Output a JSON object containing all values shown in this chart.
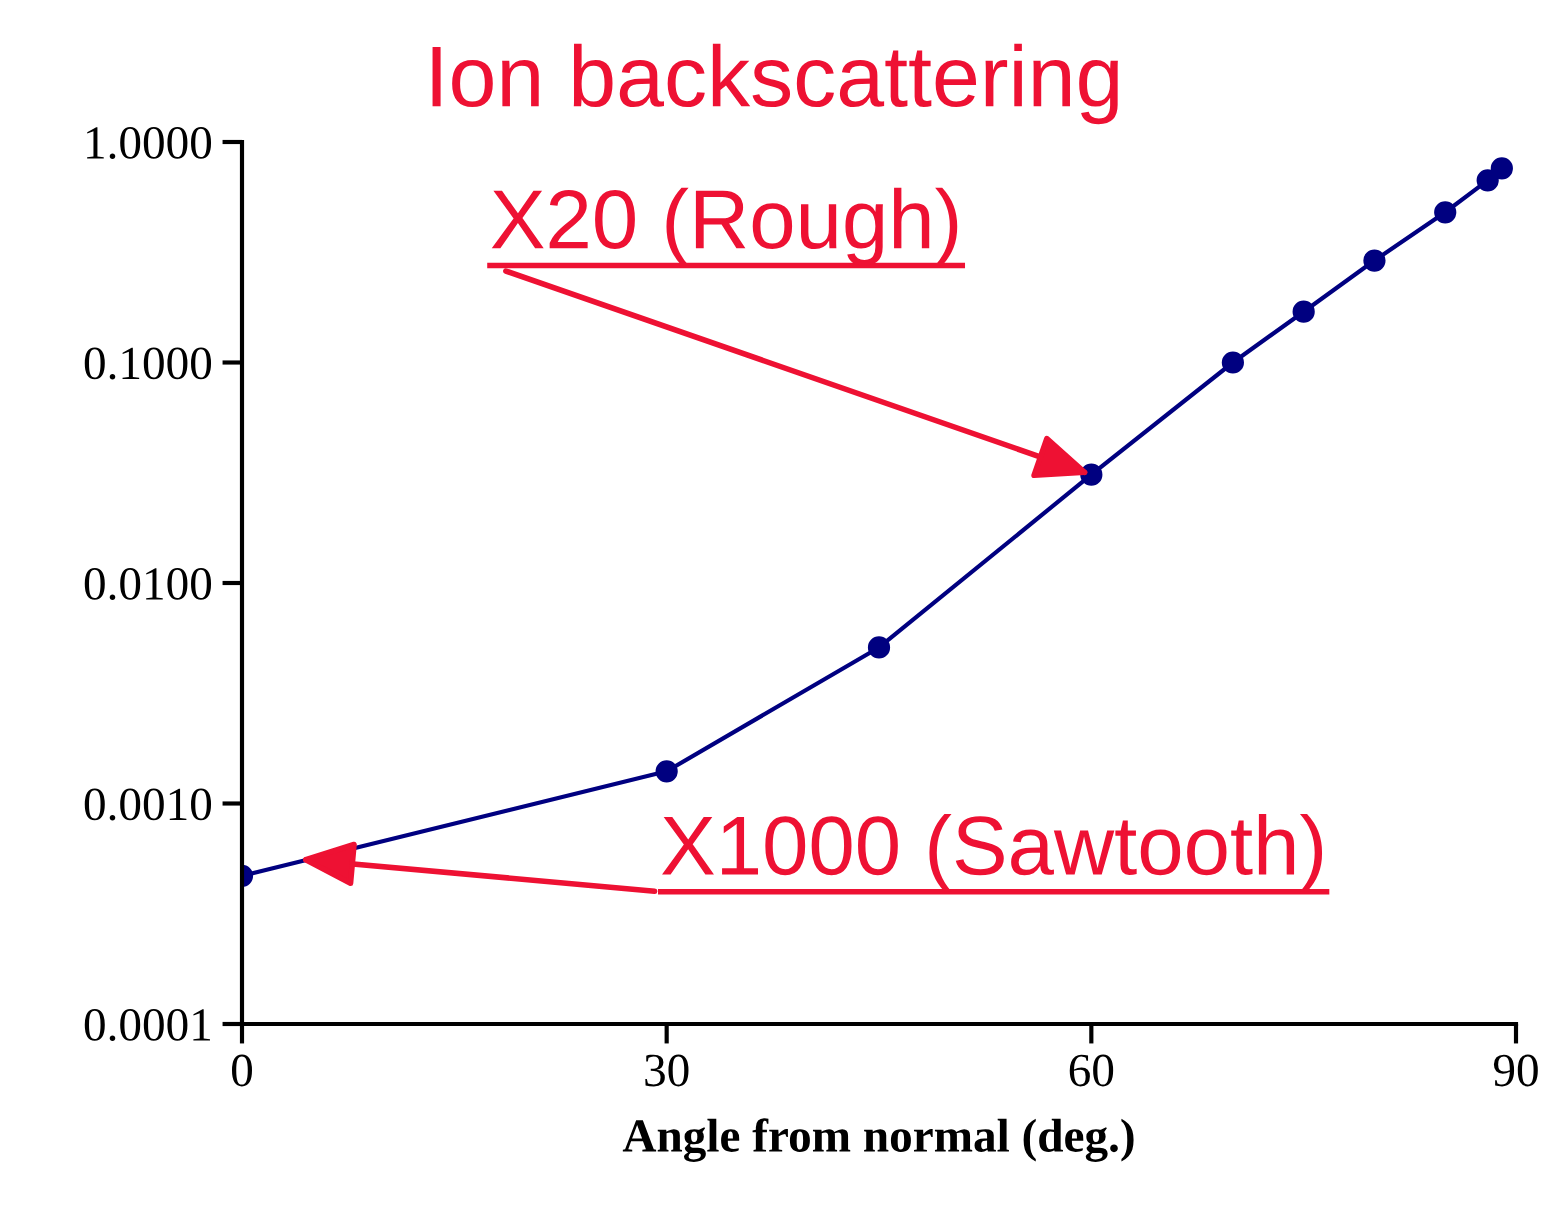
{
  "chart_data": {
    "type": "line",
    "title": "Ion backscattering",
    "xlabel": "Angle from normal (deg.)",
    "x": [
      0,
      30,
      45,
      60,
      70,
      75,
      80,
      85,
      88,
      89
    ],
    "series": [
      {
        "color": "#000080",
        "values": [
          0.00047,
          0.0014,
          0.0051,
          0.031,
          0.1,
          0.17,
          0.29,
          0.48,
          0.67,
          0.76
        ]
      }
    ],
    "marker": "circle",
    "line_style": "solid",
    "log": "y",
    "grid": false,
    "xlim": [
      0,
      90
    ],
    "xticks": [
      0,
      30,
      60,
      90
    ],
    "ylim": [
      0.0001,
      1
    ],
    "yticks": [
      {
        "value": 0.0001,
        "label": "0.0001"
      },
      {
        "value": 0.001,
        "label": "0.0010"
      },
      {
        "value": 0.01,
        "label": "0.0100"
      },
      {
        "value": 0.1,
        "label": "0.1000"
      },
      {
        "value": 1,
        "label": "1.0000"
      }
    ],
    "annotations": [
      {
        "text": "X20 (Rough)",
        "x": 60,
        "y": 0.031
      },
      {
        "text": "X1000 (Sawtooth)",
        "x": 4,
        "y": 0.00056
      }
    ]
  }
}
